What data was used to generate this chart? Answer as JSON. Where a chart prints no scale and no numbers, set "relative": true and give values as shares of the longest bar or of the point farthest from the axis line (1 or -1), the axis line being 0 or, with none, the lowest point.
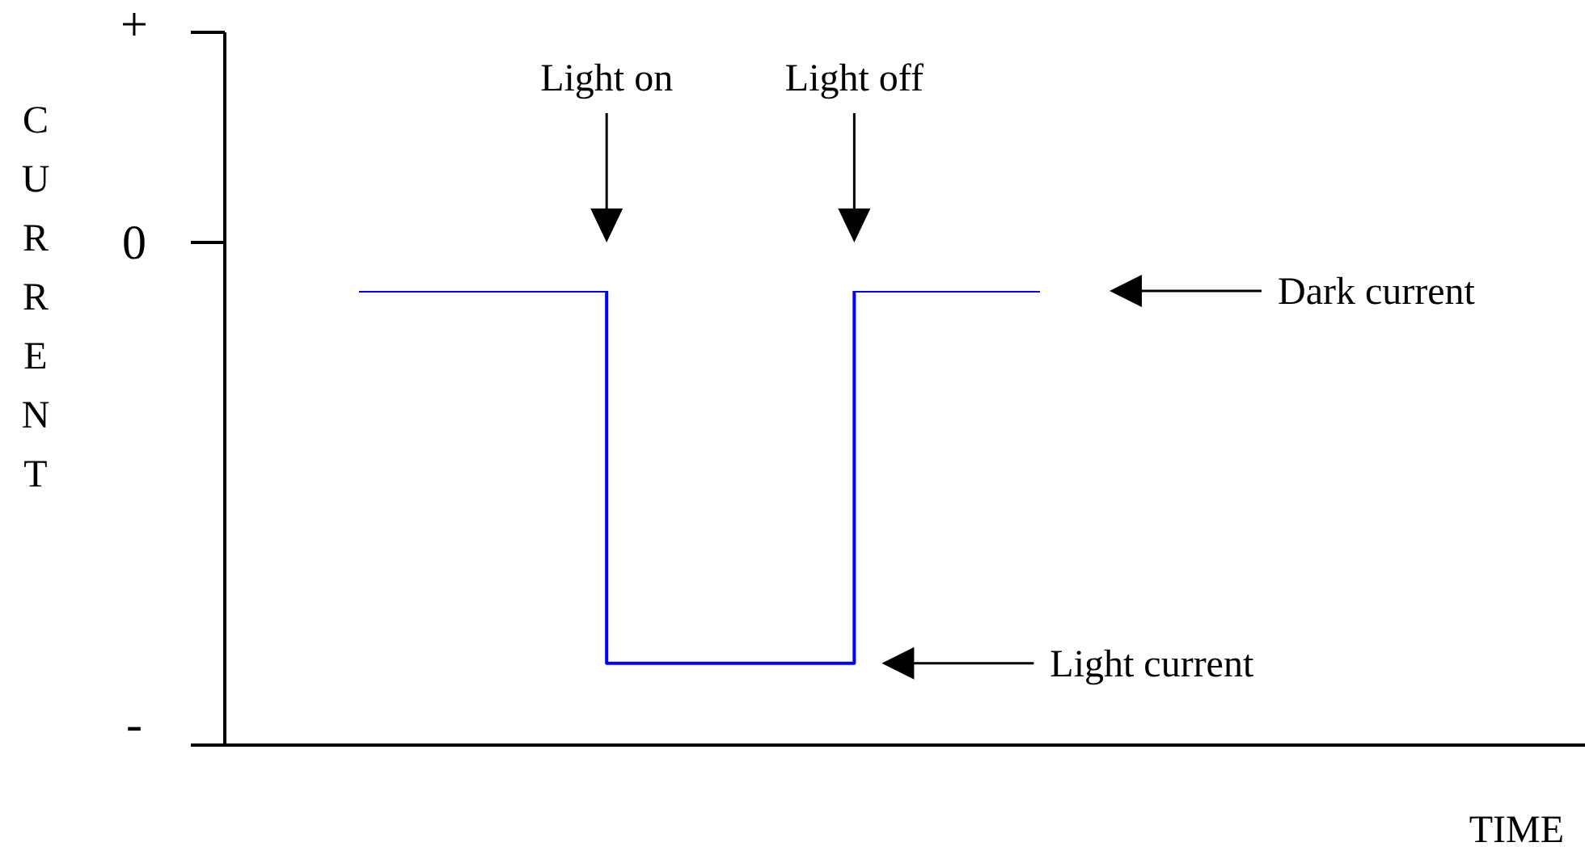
{
  "chart_data": {
    "type": "step",
    "relative": true,
    "categories": [
      null,
      null,
      null,
      null,
      null,
      null,
      null,
      null,
      null,
      null,
      null,
      null
    ],
    "series": [
      {
        "color": "#0000ff",
        "values": [
          1,
          1,
          1,
          1,
          0.18,
          0.18,
          0.18,
          0.18,
          1,
          1,
          1,
          1
        ]
      }
    ],
    "grid": false,
    "legend": false,
    "annotations": [
      "+",
      "0",
      "-",
      "Light on",
      "Light off",
      "Dark current",
      "Light current",
      "CURRENT",
      "TIME"
    ]
  }
}
